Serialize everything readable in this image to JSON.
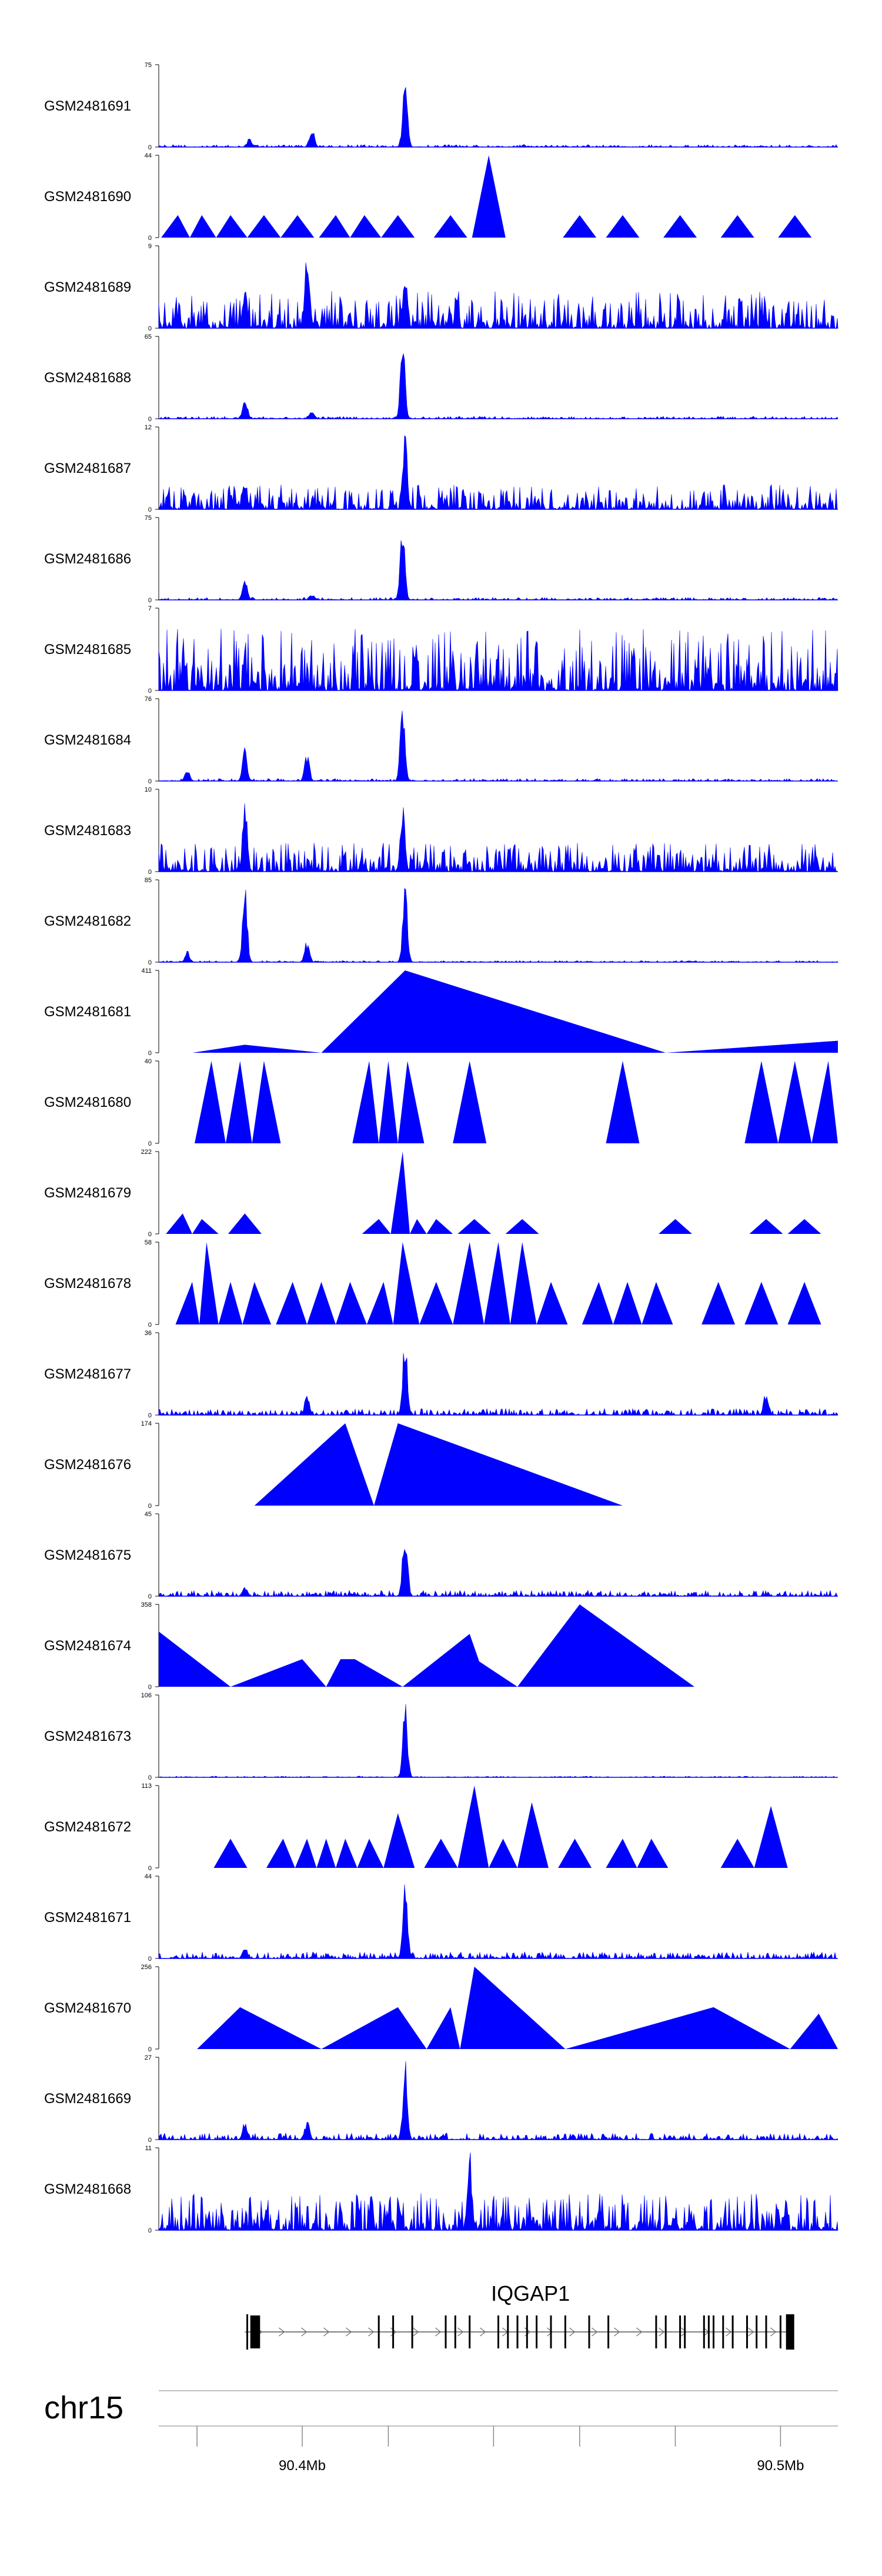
{
  "chart_data": {
    "type": "area",
    "title": "",
    "chromosome": "chr15",
    "x_range": [
      90370000,
      90512000
    ],
    "xlabel": "",
    "ylabel": "",
    "grid": false,
    "color": "#0000ff",
    "series": [
      {
        "name": "GSM2481691",
        "ymax": 75,
        "ylim_labels": [
          "75",
          "0"
        ],
        "peaks": [
          [
            90389000,
            10
          ],
          [
            90402000,
            20
          ],
          [
            90421500,
            75
          ]
        ],
        "fill": "dense",
        "noise": 0.03
      },
      {
        "name": "GSM2481690",
        "ymax": 44,
        "ylim_labels": [
          "44",
          "0"
        ],
        "peaks": [
          [
            90374000,
            12
          ],
          [
            90379000,
            12
          ],
          [
            90385000,
            12
          ],
          [
            90392000,
            12
          ],
          [
            90399000,
            12
          ],
          [
            90407000,
            12
          ],
          [
            90413000,
            12
          ],
          [
            90420000,
            12
          ],
          [
            90431000,
            12
          ],
          [
            90439000,
            44
          ],
          [
            90458000,
            12
          ],
          [
            90467000,
            12
          ],
          [
            90479000,
            12
          ],
          [
            90491000,
            12
          ],
          [
            90503000,
            12
          ]
        ],
        "fill": "triangles"
      },
      {
        "name": "GSM2481689",
        "ymax": 9,
        "ylim_labels": [
          "9",
          "0"
        ],
        "peaks": [
          [
            90388000,
            5
          ],
          [
            90401000,
            9
          ],
          [
            90421500,
            8
          ]
        ],
        "fill": "dense",
        "noise": 0.45
      },
      {
        "name": "GSM2481688",
        "ymax": 65,
        "ylim_labels": [
          "65",
          "0"
        ],
        "peaks": [
          [
            90388000,
            20
          ],
          [
            90402000,
            8
          ],
          [
            90421000,
            65
          ]
        ],
        "fill": "dense",
        "noise": 0.03
      },
      {
        "name": "GSM2481687",
        "ymax": 12,
        "ylim_labels": [
          "12",
          "0"
        ],
        "peaks": [
          [
            90388000,
            5
          ],
          [
            90421500,
            12
          ]
        ],
        "fill": "dense",
        "noise": 0.3
      },
      {
        "name": "GSM2481686",
        "ymax": 75,
        "ylim_labels": [
          "75",
          "0"
        ],
        "peaks": [
          [
            90388000,
            20
          ],
          [
            90402000,
            6
          ],
          [
            90421000,
            75
          ]
        ],
        "fill": "dense",
        "noise": 0.03
      },
      {
        "name": "GSM2481685",
        "ymax": 7,
        "ylim_labels": [
          "7",
          "0"
        ],
        "peaks": [],
        "fill": "dense",
        "noise": 0.75
      },
      {
        "name": "GSM2481684",
        "ymax": 76,
        "ylim_labels": [
          "76",
          "0"
        ],
        "peaks": [
          [
            90376000,
            12
          ],
          [
            90388000,
            32
          ],
          [
            90401000,
            30
          ],
          [
            90421000,
            76
          ]
        ],
        "fill": "dense",
        "noise": 0.03
      },
      {
        "name": "GSM2481683",
        "ymax": 10,
        "ylim_labels": [
          "10",
          "0"
        ],
        "peaks": [
          [
            90388000,
            10
          ],
          [
            90421000,
            10
          ]
        ],
        "fill": "dense",
        "noise": 0.35
      },
      {
        "name": "GSM2481682",
        "ymax": 85,
        "ylim_labels": [
          "85",
          "0"
        ],
        "peaks": [
          [
            90376000,
            12
          ],
          [
            90388000,
            85
          ],
          [
            90401000,
            25
          ],
          [
            90421500,
            85
          ]
        ],
        "fill": "dense",
        "noise": 0.02
      },
      {
        "name": "GSM2481681",
        "ymax": 411,
        "ylim_labels": [
          "411",
          "0"
        ],
        "peaks": [
          [
            90377000,
            0
          ],
          [
            90388000,
            40
          ],
          [
            90404000,
            0
          ],
          [
            90421500,
            411
          ],
          [
            90476000,
            0
          ],
          [
            90512000,
            60
          ]
        ],
        "fill": "polygon"
      },
      {
        "name": "GSM2481680",
        "ymax": 40,
        "ylim_labels": [
          "40",
          "0"
        ],
        "peaks": [
          [
            90381000,
            40
          ],
          [
            90387000,
            40
          ],
          [
            90392000,
            40
          ],
          [
            90414000,
            40
          ],
          [
            90418000,
            40
          ],
          [
            90422000,
            40
          ],
          [
            90435000,
            40
          ],
          [
            90467000,
            40
          ],
          [
            90496000,
            40
          ],
          [
            90503000,
            40
          ],
          [
            90510000,
            40
          ]
        ],
        "fill": "triangles"
      },
      {
        "name": "GSM2481679",
        "ymax": 222,
        "ylim_labels": [
          "222",
          "0"
        ],
        "peaks": [
          [
            90375000,
            55
          ],
          [
            90379000,
            40
          ],
          [
            90388000,
            55
          ],
          [
            90416000,
            40
          ],
          [
            90421000,
            222
          ],
          [
            90424000,
            40
          ],
          [
            90428000,
            40
          ],
          [
            90436000,
            40
          ],
          [
            90446000,
            40
          ],
          [
            90478000,
            40
          ],
          [
            90497000,
            40
          ],
          [
            90505000,
            40
          ]
        ],
        "fill": "triangles"
      },
      {
        "name": "GSM2481678",
        "ymax": 58,
        "ylim_labels": [
          "58",
          "0"
        ],
        "peaks": [
          [
            90377000,
            30
          ],
          [
            90380000,
            58
          ],
          [
            90385000,
            30
          ],
          [
            90390000,
            30
          ],
          [
            90398000,
            30
          ],
          [
            90404000,
            30
          ],
          [
            90410000,
            30
          ],
          [
            90417000,
            30
          ],
          [
            90421000,
            58
          ],
          [
            90428000,
            30
          ],
          [
            90435000,
            58
          ],
          [
            90441000,
            58
          ],
          [
            90446000,
            58
          ],
          [
            90452000,
            30
          ],
          [
            90462000,
            30
          ],
          [
            90468000,
            30
          ],
          [
            90474000,
            30
          ],
          [
            90487000,
            30
          ],
          [
            90496000,
            30
          ],
          [
            90505000,
            30
          ]
        ],
        "fill": "triangles"
      },
      {
        "name": "GSM2481677",
        "ymax": 36,
        "ylim_labels": [
          "36",
          "0"
        ],
        "peaks": [
          [
            90401000,
            10
          ],
          [
            90421500,
            36
          ],
          [
            90497000,
            12
          ]
        ],
        "fill": "dense",
        "noise": 0.08
      },
      {
        "name": "GSM2481676",
        "ymax": 174,
        "ylim_labels": [
          "174",
          "0"
        ],
        "peaks": [
          [
            90390000,
            0
          ],
          [
            90409000,
            174
          ],
          [
            90415000,
            0
          ],
          [
            90420000,
            174
          ],
          [
            90467000,
            0
          ]
        ],
        "fill": "polygon"
      },
      {
        "name": "GSM2481675",
        "ymax": 45,
        "ylim_labels": [
          "45",
          "0"
        ],
        "peaks": [
          [
            90388000,
            6
          ],
          [
            90421500,
            45
          ]
        ],
        "fill": "dense",
        "noise": 0.07
      },
      {
        "name": "GSM2481674",
        "ymax": 358,
        "ylim_labels": [
          "358",
          "0"
        ],
        "peaks": [
          [
            90370000,
            240
          ],
          [
            90385000,
            0
          ],
          [
            90400000,
            120
          ],
          [
            90405000,
            0
          ],
          [
            90408000,
            120
          ],
          [
            90411000,
            120
          ],
          [
            90421000,
            0
          ],
          [
            90435000,
            230
          ],
          [
            90437000,
            110
          ],
          [
            90445000,
            0
          ],
          [
            90458000,
            358
          ],
          [
            90482000,
            0
          ]
        ],
        "fill": "polygon"
      },
      {
        "name": "GSM2481673",
        "ymax": 106,
        "ylim_labels": [
          "106",
          "0"
        ],
        "peaks": [
          [
            90421500,
            106
          ]
        ],
        "fill": "dense",
        "noise": 0.015
      },
      {
        "name": "GSM2481672",
        "ymax": 113,
        "ylim_labels": [
          "113",
          "0"
        ],
        "peaks": [
          [
            90385000,
            40
          ],
          [
            90396000,
            40
          ],
          [
            90401000,
            40
          ],
          [
            90405000,
            40
          ],
          [
            90409000,
            40
          ],
          [
            90414000,
            40
          ],
          [
            90420000,
            75
          ],
          [
            90429000,
            40
          ],
          [
            90436000,
            113
          ],
          [
            90442000,
            40
          ],
          [
            90448000,
            90
          ],
          [
            90457000,
            40
          ],
          [
            90467000,
            40
          ],
          [
            90473000,
            40
          ],
          [
            90491000,
            40
          ],
          [
            90498000,
            85
          ]
        ],
        "fill": "triangles"
      },
      {
        "name": "GSM2481671",
        "ymax": 44,
        "ylim_labels": [
          "44",
          "0"
        ],
        "peaks": [
          [
            90388000,
            8
          ],
          [
            90421500,
            44
          ]
        ],
        "fill": "dense",
        "noise": 0.08
      },
      {
        "name": "GSM2481670",
        "ymax": 256,
        "ylim_labels": [
          "256",
          "0"
        ],
        "peaks": [
          [
            90378000,
            0
          ],
          [
            90387000,
            130
          ],
          [
            90404000,
            0
          ],
          [
            90420000,
            130
          ],
          [
            90426000,
            0
          ],
          [
            90431000,
            130
          ],
          [
            90433000,
            0
          ],
          [
            90436000,
            256
          ],
          [
            90455000,
            0
          ],
          [
            90486000,
            130
          ],
          [
            90502000,
            0
          ],
          [
            90508000,
            110
          ],
          [
            90512000,
            0
          ]
        ],
        "fill": "polygon"
      },
      {
        "name": "GSM2481669",
        "ymax": 27,
        "ylim_labels": [
          "27",
          "0"
        ],
        "peaks": [
          [
            90388000,
            6
          ],
          [
            90401000,
            7
          ],
          [
            90421500,
            27
          ]
        ],
        "fill": "dense",
        "noise": 0.08
      },
      {
        "name": "GSM2481668",
        "ymax": 11,
        "ylim_labels": [
          "11",
          "0"
        ],
        "peaks": [
          [
            90435000,
            11
          ]
        ],
        "fill": "dense",
        "noise": 0.45
      }
    ],
    "gene": {
      "name": "IQGAP1",
      "start": 90388000,
      "end": 90502500,
      "strand": "+",
      "exons": [
        90388500,
        90390000,
        90391000,
        90416000,
        90419000,
        90423000,
        90430000,
        90432000,
        90435000,
        90441000,
        90443000,
        90445000,
        90447000,
        90449000,
        90452000,
        90455000,
        90460000,
        90464000,
        90474000,
        90476000,
        90479000,
        90480000,
        90484000,
        90485000,
        90486000,
        90488000,
        90490000,
        90493000,
        90495000,
        90497000,
        90500000,
        90502000
      ]
    },
    "axis": {
      "ticks": [
        90378000,
        90400000,
        90418000,
        90440000,
        90458000,
        90478000,
        90500000
      ],
      "tick_labels": [
        {
          "value": 90400000,
          "label": "90.4Mb"
        },
        {
          "value": 90500000,
          "label": "90.5Mb"
        }
      ]
    }
  }
}
